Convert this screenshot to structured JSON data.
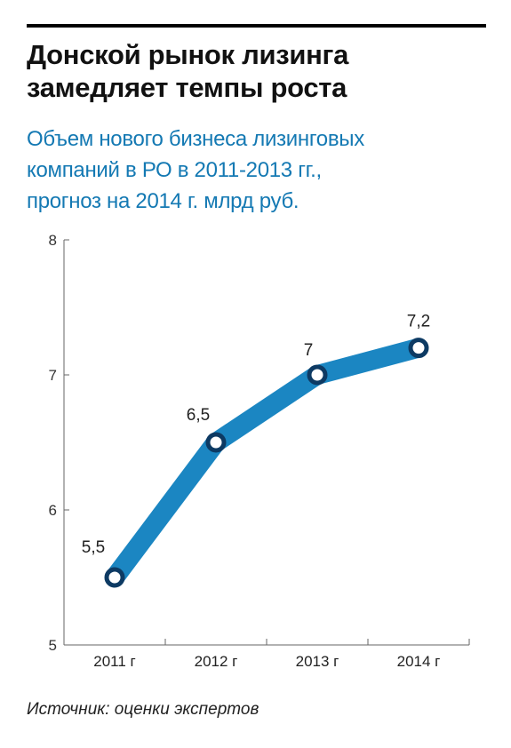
{
  "header": {
    "title_line1": "Донской рынок лизинга",
    "title_line2": "замедляет темпы роста",
    "subtitle_line1": "Объем нового бизнеса лизинговых",
    "subtitle_line2": "компаний в РО в 2011-2013 гг.,",
    "subtitle_line3": "прогноз на 2014 г. млрд руб."
  },
  "colors": {
    "line": "#1b86c2",
    "marker": "#0d3a63",
    "marker_fill": "#ffffff",
    "axis": "#666666",
    "subtitle": "#1479b3"
  },
  "chart_data": {
    "type": "line",
    "categories": [
      "2011 г",
      "2012 г",
      "2013 г",
      "2014 г"
    ],
    "series": [
      {
        "values": [
          5.5,
          6.5,
          7,
          7.2
        ],
        "labels": [
          "5,5",
          "6,5",
          "7",
          "7,2"
        ]
      }
    ],
    "yticks": [
      "5",
      "6",
      "7",
      "8"
    ],
    "ylim": [
      5,
      8
    ],
    "xlabel": "",
    "ylabel": "",
    "grid": false
  },
  "footer": {
    "source": "Источник: оценки экспертов"
  }
}
